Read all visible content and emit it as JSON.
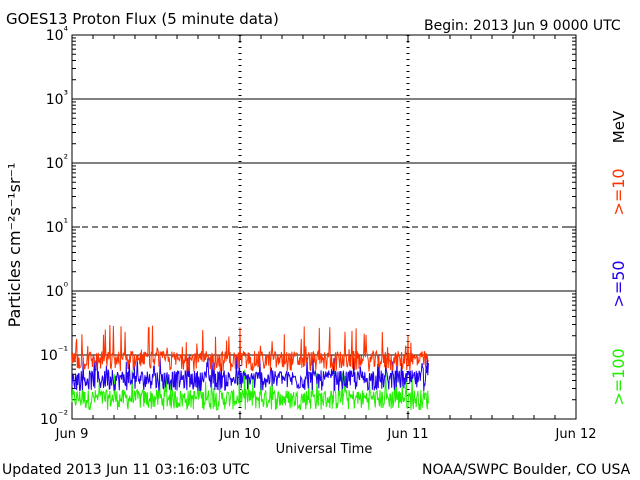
{
  "header": {
    "title": "GOES13 Proton Flux (5 minute data)",
    "begin": "Begin: 2013 Jun 9 0000 UTC"
  },
  "footer": {
    "updated": "Updated 2013 Jun 11 03:16:03 UTC",
    "credit": "NOAA/SWPC Boulder, CO USA"
  },
  "chart_data": {
    "type": "line",
    "title": "GOES13 Proton Flux (5 minute data)",
    "xlabel": "Universal Time",
    "ylabel": "Particles cm⁻²s⁻¹sr⁻¹",
    "yscale": "log",
    "ylim": [
      0.01,
      10000
    ],
    "xlim_days": [
      0,
      3
    ],
    "x_ticks": [
      "Jun 9",
      "Jun 10",
      "Jun 11",
      "Jun 12"
    ],
    "y_ticks": [
      "10⁻²",
      "10⁻¹",
      "10⁰",
      "10¹",
      "10²",
      "10³",
      "10⁴"
    ],
    "unit_label": "MeV",
    "grid": "horizontal at each decade; dashed at 10¹",
    "series": [
      {
        "name": ">=10",
        "color": "#ff3300",
        "base_value": 0.1,
        "peak_value": 0.3,
        "x_end_days": 2.12
      },
      {
        "name": ">=50",
        "color": "#2200ee",
        "base_value": 0.05,
        "peak_value": 0.1,
        "x_end_days": 2.12
      },
      {
        "name": ">=100",
        "color": "#22ee00",
        "base_value": 0.025,
        "peak_value": 0.06,
        "x_end_days": 2.12
      }
    ]
  }
}
